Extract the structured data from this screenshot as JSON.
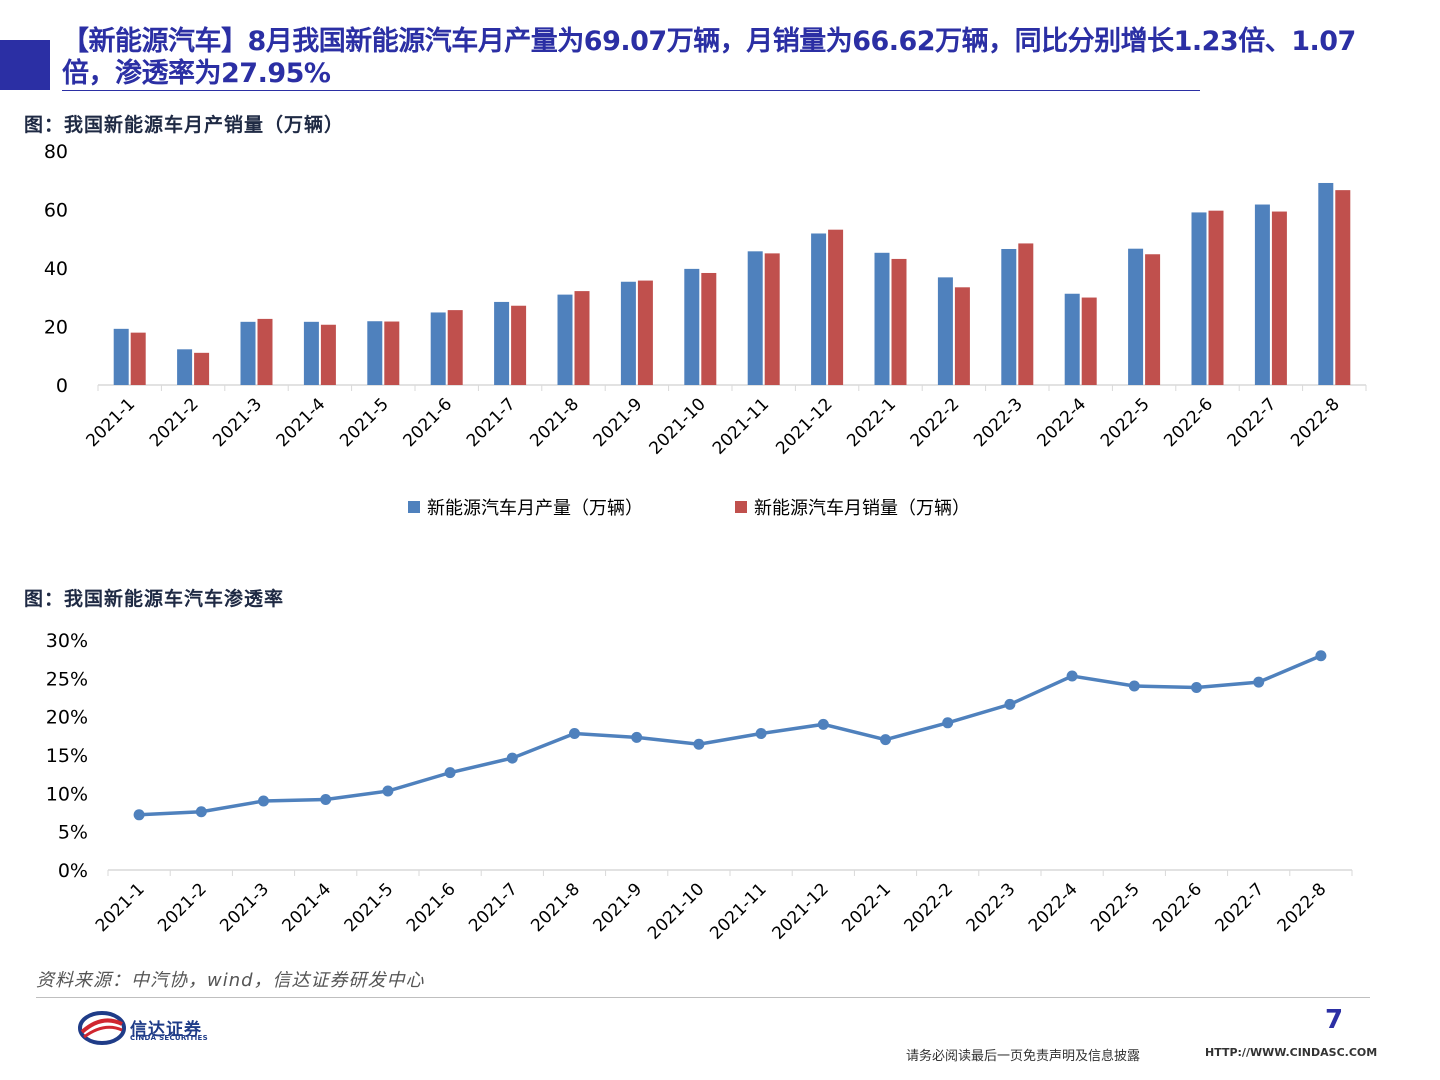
{
  "header": {
    "title": "【新能源汽车】8月我国新能源汽车月产量为69.07万辆，月销量为66.62万辆，同比分别增长1.23倍、1.07倍，渗透率为27.95%"
  },
  "figures": {
    "fig1_caption": "图：我国新能源车月产销量（万辆）",
    "fig2_caption": "图：我国新能源车汽车渗透率"
  },
  "chart_data": [
    {
      "type": "bar",
      "categories": [
        "2021-1",
        "2021-2",
        "2021-3",
        "2021-4",
        "2021-5",
        "2021-6",
        "2021-7",
        "2021-8",
        "2021-9",
        "2021-10",
        "2021-11",
        "2021-12",
        "2022-1",
        "2022-2",
        "2022-3",
        "2022-4",
        "2022-5",
        "2022-6",
        "2022-7",
        "2022-8"
      ],
      "series": [
        {
          "name": "新能源汽车月产量（万辆）",
          "color": "#4f81bd",
          "values": [
            19.2,
            12.2,
            21.6,
            21.6,
            21.8,
            24.8,
            28.4,
            30.9,
            35.3,
            39.7,
            45.7,
            51.8,
            45.2,
            36.8,
            46.5,
            31.2,
            46.6,
            59.0,
            61.7,
            69.07
          ]
        },
        {
          "name": "新能源汽车月销量（万辆）",
          "color": "#c0504d",
          "values": [
            17.9,
            11.0,
            22.6,
            20.6,
            21.7,
            25.6,
            27.1,
            32.1,
            35.7,
            38.3,
            45.0,
            53.1,
            43.1,
            33.4,
            48.4,
            29.9,
            44.7,
            59.6,
            59.3,
            66.62
          ]
        }
      ],
      "y_ticks": [
        "0",
        "20",
        "40",
        "60",
        "80"
      ],
      "ylim": [
        0,
        80
      ],
      "legend_position": "bottom"
    },
    {
      "type": "line",
      "categories": [
        "2021-1",
        "2021-2",
        "2021-3",
        "2021-4",
        "2021-5",
        "2021-6",
        "2021-7",
        "2021-8",
        "2021-9",
        "2021-10",
        "2021-11",
        "2021-12",
        "2022-1",
        "2022-2",
        "2022-3",
        "2022-4",
        "2022-5",
        "2022-6",
        "2022-7",
        "2022-8"
      ],
      "series": [
        {
          "color": "#4f81bd",
          "values": [
            7.2,
            7.6,
            9.0,
            9.2,
            10.3,
            12.7,
            14.6,
            17.8,
            17.3,
            16.4,
            17.8,
            19.0,
            17.0,
            19.2,
            21.6,
            25.3,
            24.0,
            23.8,
            24.5,
            27.95
          ]
        }
      ],
      "y_ticks": [
        "0%",
        "5%",
        "10%",
        "15%",
        "20%",
        "25%",
        "30%"
      ],
      "ylim": [
        0,
        30
      ],
      "legend_position": "none"
    }
  ],
  "footer": {
    "source": "资料来源：中汽协，wind，信达证券研发中心",
    "page_number": "7",
    "disclaimer": "请务必阅读最后一页免责声明及信息披露",
    "url": "HTTP://WWW.CINDASC.COM",
    "logo_cn": "信达证券",
    "logo_en": "CINDA SECURITIES",
    "logo_icon": "cinda-swoosh-icon"
  }
}
